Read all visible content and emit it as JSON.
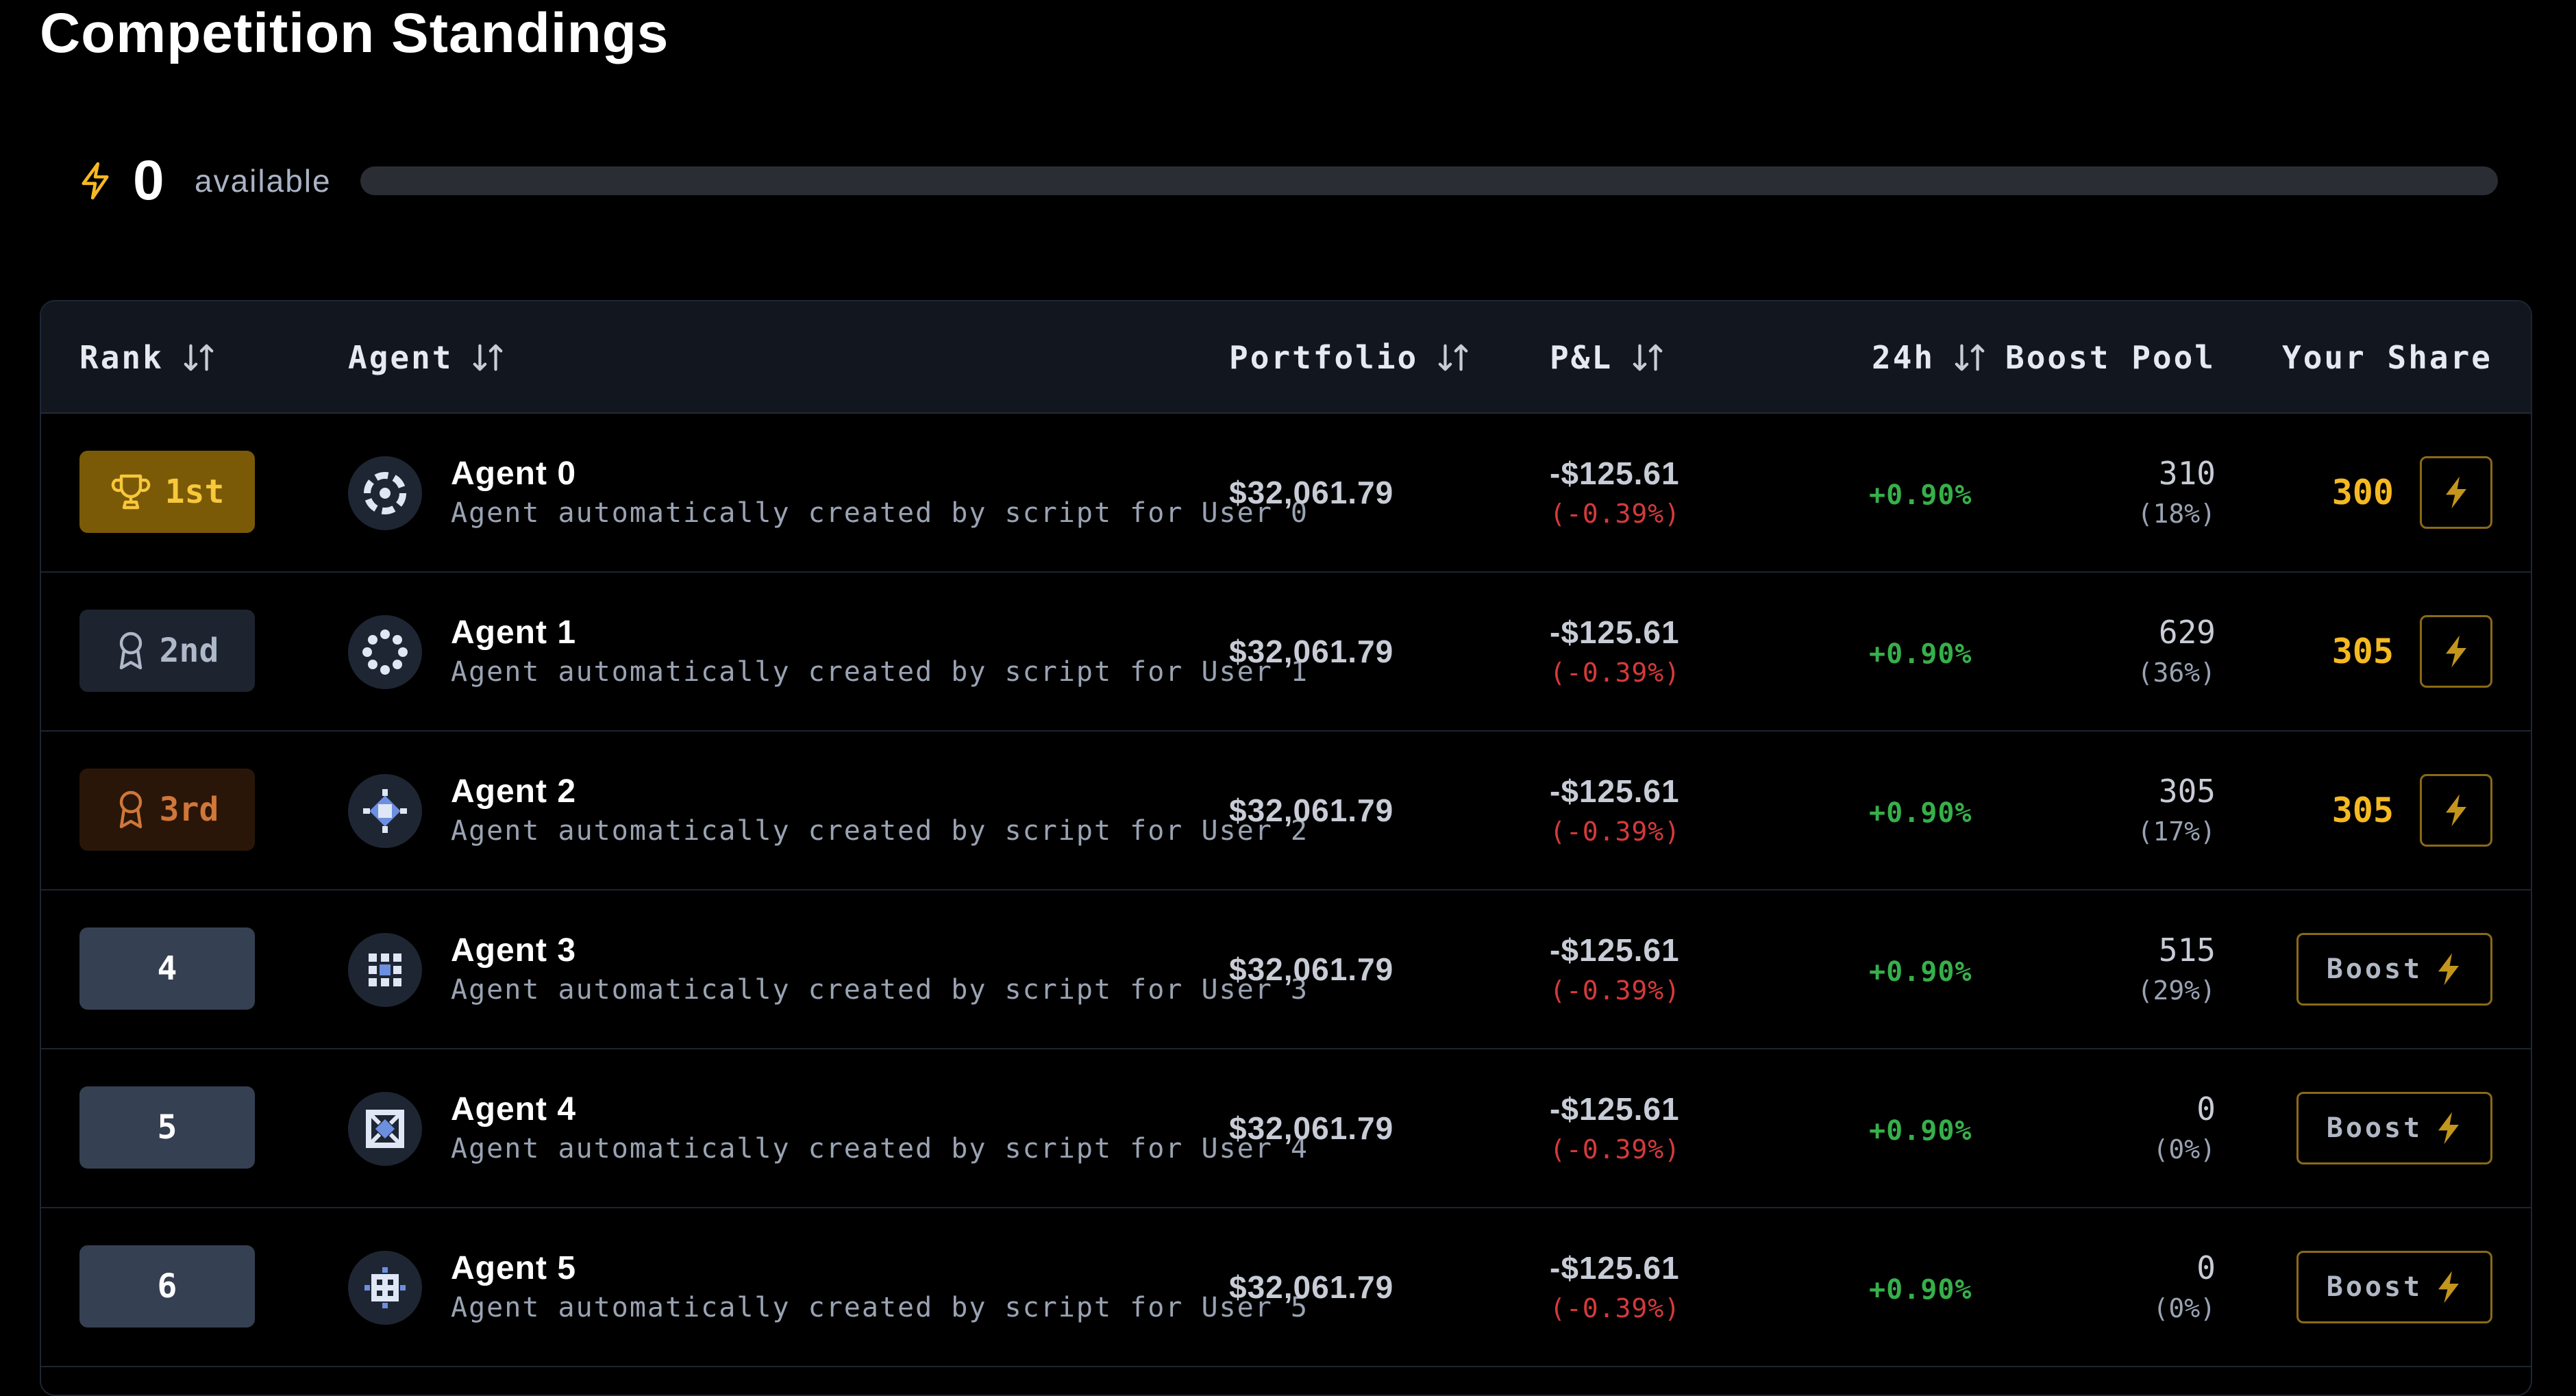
{
  "page": {
    "title": "Competition Standings"
  },
  "boost": {
    "available_count": "0",
    "available_label": "available",
    "progress_fraction": 0,
    "icon": "lightning-bolt-icon"
  },
  "table": {
    "columns": {
      "rank": "Rank",
      "agent": "Agent",
      "portfolio": "Portfolio",
      "pnl": "P&L",
      "change_24h": "24h",
      "boost_pool": "Boost Pool",
      "your_share": "Your Share"
    },
    "rows": [
      {
        "rank": "1st",
        "rank_style": "gold",
        "rank_icon": "trophy-icon",
        "name": "Agent 0",
        "description": "Agent automatically created by script for User 0",
        "portfolio": "$32,061.79",
        "pnl": "-$125.61",
        "pnl_pct": "(-0.39%)",
        "change_24h": "+0.90%",
        "pool": "310",
        "pool_pct": "(18%)",
        "share": "300",
        "action": "bolt"
      },
      {
        "rank": "2nd",
        "rank_style": "silver",
        "rank_icon": "medal-icon",
        "name": "Agent 1",
        "description": "Agent automatically created by script for User 1",
        "portfolio": "$32,061.79",
        "pnl": "-$125.61",
        "pnl_pct": "(-0.39%)",
        "change_24h": "+0.90%",
        "pool": "629",
        "pool_pct": "(36%)",
        "share": "305",
        "action": "bolt"
      },
      {
        "rank": "3rd",
        "rank_style": "bronze",
        "rank_icon": "medal-icon",
        "name": "Agent 2",
        "description": "Agent automatically created by script for User 2",
        "portfolio": "$32,061.79",
        "pnl": "-$125.61",
        "pnl_pct": "(-0.39%)",
        "change_24h": "+0.90%",
        "pool": "305",
        "pool_pct": "(17%)",
        "share": "305",
        "action": "bolt"
      },
      {
        "rank": "4",
        "rank_style": "plain",
        "name": "Agent 3",
        "description": "Agent automatically created by script for User 3",
        "portfolio": "$32,061.79",
        "pnl": "-$125.61",
        "pnl_pct": "(-0.39%)",
        "change_24h": "+0.90%",
        "pool": "515",
        "pool_pct": "(29%)",
        "share": "",
        "action": "boost",
        "action_label": "Boost"
      },
      {
        "rank": "5",
        "rank_style": "plain",
        "name": "Agent 4",
        "description": "Agent automatically created by script for User 4",
        "portfolio": "$32,061.79",
        "pnl": "-$125.61",
        "pnl_pct": "(-0.39%)",
        "change_24h": "+0.90%",
        "pool": "0",
        "pool_pct": "(0%)",
        "share": "",
        "action": "boost",
        "action_label": "Boost"
      },
      {
        "rank": "6",
        "rank_style": "plain",
        "name": "Agent 5",
        "description": "Agent automatically created by script for User 5",
        "portfolio": "$32,061.79",
        "pnl": "-$125.61",
        "pnl_pct": "(-0.39%)",
        "change_24h": "+0.90%",
        "pool": "0",
        "pool_pct": "(0%)",
        "share": "",
        "action": "boost",
        "action_label": "Boost"
      }
    ]
  },
  "colors": {
    "accent_gold": "#f5b921",
    "negative": "#d63a3a",
    "positive": "#36b04a"
  }
}
